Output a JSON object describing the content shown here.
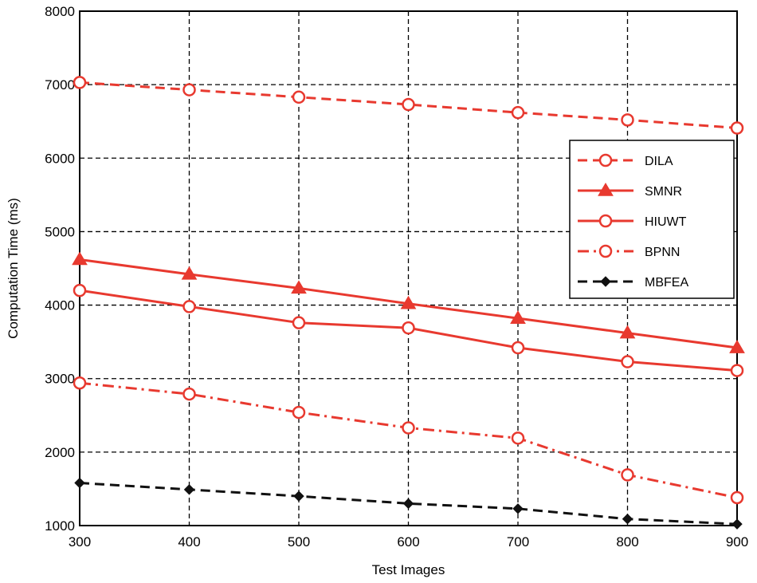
{
  "chart_data": {
    "type": "line",
    "xlabel": "Test Images",
    "ylabel": "Computation Time (ms)",
    "x": [
      300,
      400,
      500,
      600,
      700,
      800,
      900
    ],
    "xlim": [
      300,
      900
    ],
    "ylim": [
      1000,
      8000
    ],
    "xticks": [
      "300",
      "400",
      "500",
      "600",
      "700",
      "800",
      "900"
    ],
    "yticks": [
      "1000",
      "2000",
      "3000",
      "4000",
      "5000",
      "6000",
      "7000",
      "8000"
    ],
    "grid": true,
    "legend_position": "right",
    "series": [
      {
        "name": "DILA",
        "color": "#e8392f",
        "line": "dashed",
        "marker": "circle",
        "values": [
          7030,
          6930,
          6830,
          6730,
          6620,
          6520,
          6410
        ]
      },
      {
        "name": "SMNR",
        "color": "#e8392f",
        "line": "solid",
        "marker": "triangle",
        "values": [
          4620,
          4420,
          4230,
          4020,
          3820,
          3620,
          3420
        ]
      },
      {
        "name": "HIUWT",
        "color": "#e8392f",
        "line": "solid",
        "marker": "circle",
        "values": [
          4200,
          3980,
          3760,
          3690,
          3420,
          3230,
          3110
        ]
      },
      {
        "name": "BPNN",
        "color": "#e8392f",
        "line": "dashdot",
        "marker": "circle",
        "values": [
          2940,
          2790,
          2540,
          2330,
          2190,
          1690,
          1380
        ]
      },
      {
        "name": "MBFEA",
        "color": "#111111",
        "line": "dashed",
        "marker": "diamond",
        "values": [
          1580,
          1490,
          1400,
          1300,
          1230,
          1090,
          1020
        ]
      }
    ]
  }
}
